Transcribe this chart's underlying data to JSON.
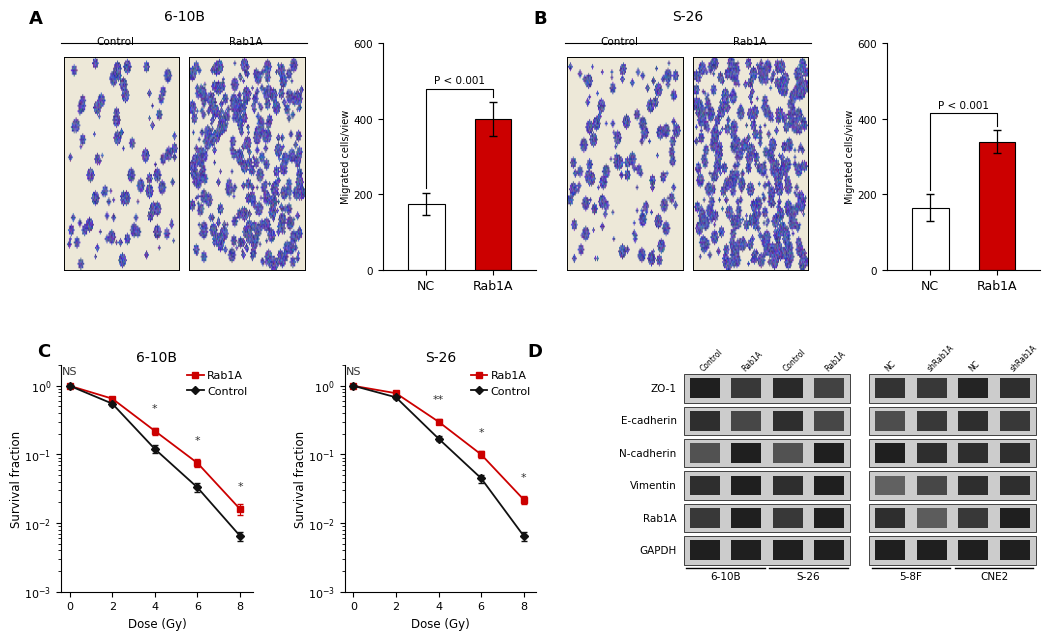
{
  "panel_A": {
    "title": "6-10B",
    "bar_categories": [
      "NC",
      "Rab1A"
    ],
    "bar_values": [
      175,
      400
    ],
    "bar_errors": [
      30,
      45
    ],
    "bar_colors": [
      "#ffffff",
      "#cc0000"
    ],
    "ylabel": "Migrated cells/view",
    "ylim": [
      0,
      600
    ],
    "yticks": [
      0,
      200,
      400,
      600
    ],
    "pvalue_text": "P < 0.001"
  },
  "panel_B": {
    "title": "S-26",
    "bar_categories": [
      "NC",
      "Rab1A"
    ],
    "bar_values": [
      165,
      340
    ],
    "bar_errors": [
      35,
      30
    ],
    "bar_colors": [
      "#ffffff",
      "#cc0000"
    ],
    "ylabel": "Migrated cells/view",
    "ylim": [
      0,
      600
    ],
    "yticks": [
      0,
      200,
      400,
      600
    ],
    "pvalue_text": "P < 0.001"
  },
  "panel_C_610B": {
    "title": "6-10B",
    "doses": [
      0,
      2,
      4,
      6,
      8
    ],
    "rab1a_values": [
      1.0,
      0.65,
      0.22,
      0.075,
      0.016
    ],
    "rab1a_errors": [
      0.0,
      0.04,
      0.025,
      0.01,
      0.003
    ],
    "control_values": [
      1.0,
      0.55,
      0.12,
      0.033,
      0.0065
    ],
    "control_errors": [
      0.0,
      0.04,
      0.015,
      0.005,
      0.001
    ],
    "ylabel": "Survival fraction",
    "xlabel": "Dose (Gy)",
    "ylim": [
      0.001,
      2
    ],
    "yticks": [
      0.001,
      0.01,
      0.1,
      1
    ],
    "annotations": [
      "NS",
      "*",
      "*",
      "*"
    ],
    "annot_doses": [
      0,
      4,
      6,
      8
    ]
  },
  "panel_C_S26": {
    "title": "S-26",
    "doses": [
      0,
      2,
      4,
      6,
      8
    ],
    "rab1a_values": [
      1.0,
      0.78,
      0.3,
      0.1,
      0.022
    ],
    "rab1a_errors": [
      0.0,
      0.03,
      0.025,
      0.012,
      0.003
    ],
    "control_values": [
      1.0,
      0.68,
      0.17,
      0.045,
      0.0065
    ],
    "control_errors": [
      0.0,
      0.04,
      0.015,
      0.006,
      0.001
    ],
    "ylabel": "Survival fraction",
    "xlabel": "Dose (Gy)",
    "ylim": [
      0.001,
      2
    ],
    "yticks": [
      0.001,
      0.01,
      0.1,
      1
    ],
    "annotations": [
      "NS",
      "**",
      "*",
      "*"
    ],
    "annot_doses": [
      0,
      4,
      6,
      8
    ]
  },
  "panel_D": {
    "wb_labels": [
      "ZO-1",
      "E-cadherin",
      "N-cadherin",
      "Vimentin",
      "Rab1A",
      "GAPDH"
    ],
    "left_headers": [
      "Control",
      "Rab1A",
      "Control",
      "Rab1A"
    ],
    "right_headers": [
      "NC",
      "shRab1A",
      "NC",
      "shRab1A"
    ],
    "group_labels_left": [
      "6-10B",
      "S-26"
    ],
    "group_labels_right": [
      "5-8F",
      "CNE2"
    ]
  },
  "colors": {
    "rab1a_line": "#cc0000",
    "control_line": "#111111",
    "background": "#ffffff"
  },
  "font_sizes": {
    "panel_label": 13,
    "title": 10,
    "axis_label": 8.5,
    "tick_label": 8,
    "legend": 8,
    "bar_xlabel": 9
  }
}
